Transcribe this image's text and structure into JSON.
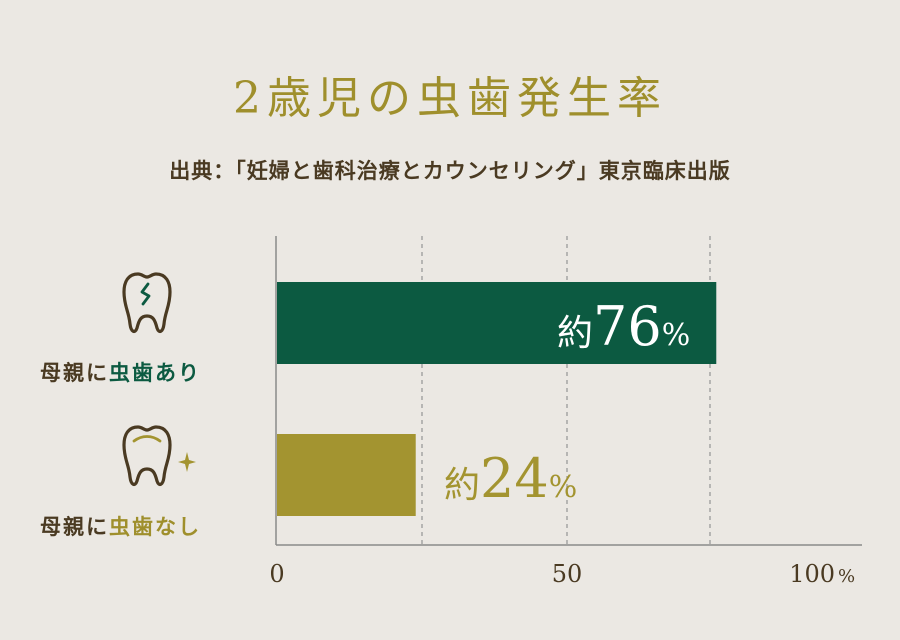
{
  "chart_data": {
    "type": "bar",
    "orientation": "horizontal",
    "title": "2歳児の虫歯発生率",
    "source": "出典：「妊婦と歯科治療とカウンセリング」東京臨床出版",
    "categories": [
      {
        "prefix": "母親に",
        "highlight": "虫歯あり"
      },
      {
        "prefix": "母親に",
        "highlight": "虫歯なし"
      }
    ],
    "values": [
      76,
      24
    ],
    "value_labels": [
      {
        "prefix": "約",
        "number": "76",
        "unit": "%"
      },
      {
        "prefix": "約",
        "number": "24",
        "unit": "%"
      }
    ],
    "xlim": [
      0,
      100
    ],
    "x_ticks": [
      0,
      50,
      100
    ],
    "x_tick_labels": [
      "0",
      "50",
      "100"
    ],
    "x_unit": "%",
    "grid": "vertical dashed",
    "colors": [
      "#0c5a41",
      "#a39430"
    ],
    "icons": [
      "decayed-tooth-icon",
      "healthy-tooth-icon"
    ]
  },
  "colors": {
    "background": "#ebe8e3",
    "title": "#9f8f2c",
    "text": "#4a3a22",
    "green": "#0c5a41",
    "gold": "#a39430"
  }
}
